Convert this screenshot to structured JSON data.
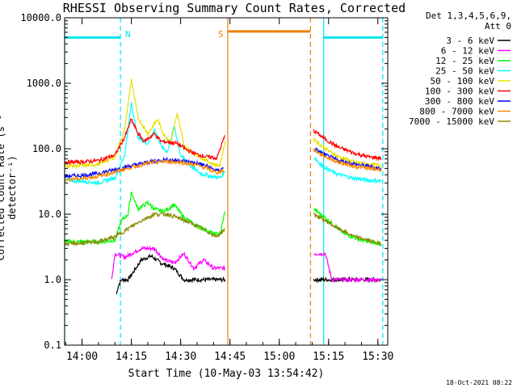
{
  "chart_data": {
    "type": "line",
    "title": "RHESSI Observing Summary Count Rates, Corrected",
    "xlabel": "Start Time (10-May-03 13:54:42)",
    "ylabel": "Corrected Count Rate (s⁻¹ detector⁻¹)",
    "timestamp": "18-Oct-2021 08:22",
    "legend_header": [
      "Det 1,3,4,5,6,9,",
      "Att 0"
    ],
    "y_scale": "log",
    "ylim": [
      0.1,
      10000
    ],
    "xlim_minutes": [
      "13:54:42",
      "15:33:00"
    ],
    "y_ticks": [
      "0.1",
      "1.0",
      "10.0",
      "100.0",
      "1000.0",
      "10000.0"
    ],
    "x_ticks": [
      "14:00",
      "14:15",
      "14:30",
      "14:45",
      "15:00",
      "15:15",
      "15:30"
    ],
    "gap": [
      "14:44:30",
      "15:09:40"
    ],
    "markers": [
      {
        "label": "N",
        "color": "#00e5ee",
        "style": "dashed",
        "times": [
          "14:11:40",
          "15:31:30"
        ]
      },
      {
        "label": "",
        "color": "#00e5ee",
        "style": "solid",
        "times": [
          "13:54:42",
          "15:13:30"
        ]
      },
      {
        "label": "S",
        "color": "#ee8000",
        "style": "solid",
        "times": [
          "14:44:20"
        ]
      },
      {
        "label": "",
        "color": "#ee8000",
        "style": "dashed",
        "times": [
          "15:09:30"
        ]
      }
    ],
    "bands": [
      {
        "color": "#00e5ee",
        "y": 5000,
        "ranges": [
          [
            "13:54:42",
            "14:11:40"
          ],
          [
            "15:13:30",
            "15:31:30"
          ]
        ]
      },
      {
        "color": "#ee8000",
        "y": 6200,
        "ranges": [
          [
            "14:44:20",
            "15:09:30"
          ]
        ]
      }
    ],
    "series": [
      {
        "name": "3 - 6 keV",
        "color": "#000000",
        "points": [
          [
            "14:10:30",
            0.6
          ],
          [
            "14:11:00",
            0.8
          ],
          [
            "14:12:00",
            1.0
          ],
          [
            "14:14:00",
            1.0
          ],
          [
            "14:16:00",
            1.4
          ],
          [
            "14:18:00",
            2.0
          ],
          [
            "14:21:00",
            2.3
          ],
          [
            "14:24:00",
            1.8
          ],
          [
            "14:28:00",
            1.5
          ],
          [
            "14:31:00",
            1.0
          ],
          [
            "14:35:00",
            1.0
          ],
          [
            "14:39:00",
            1.0
          ],
          [
            "14:43:30",
            1.0
          ],
          [
            "15:10:30",
            1.0
          ],
          [
            "15:13:30",
            1.0
          ],
          [
            "15:16:00",
            1.0
          ],
          [
            "15:31:00",
            1.0
          ]
        ]
      },
      {
        "name": "6 - 12 keV",
        "color": "#ff00ff",
        "points": [
          [
            "14:09:00",
            1.0
          ],
          [
            "14:10:00",
            2.5
          ],
          [
            "14:13:00",
            2.2
          ],
          [
            "14:15:00",
            2.5
          ],
          [
            "14:18:00",
            3.0
          ],
          [
            "14:22:00",
            3.0
          ],
          [
            "14:25:00",
            2.0
          ],
          [
            "14:28:00",
            1.8
          ],
          [
            "14:31:00",
            2.5
          ],
          [
            "14:34:00",
            1.5
          ],
          [
            "14:37:00",
            2.0
          ],
          [
            "14:40:00",
            1.5
          ],
          [
            "14:43:30",
            1.5
          ],
          [
            "15:10:30",
            2.5
          ],
          [
            "15:14:00",
            2.5
          ],
          [
            "15:16:00",
            1.0
          ],
          [
            "15:31:00",
            1.0
          ]
        ]
      },
      {
        "name": "12 - 25 keV",
        "color": "#00ff00",
        "points": [
          [
            "13:54:42",
            3.8
          ],
          [
            "14:00:00",
            3.8
          ],
          [
            "14:06:00",
            3.8
          ],
          [
            "14:10:00",
            4.0
          ],
          [
            "14:12:00",
            8.0
          ],
          [
            "14:14:00",
            10.0
          ],
          [
            "14:15:00",
            22.0
          ],
          [
            "14:17:00",
            12.0
          ],
          [
            "14:20:00",
            15.0
          ],
          [
            "14:22:00",
            12.0
          ],
          [
            "14:25:00",
            11.0
          ],
          [
            "14:28:00",
            14.0
          ],
          [
            "14:31:00",
            9.0
          ],
          [
            "14:34:00",
            7.0
          ],
          [
            "14:37:00",
            6.0
          ],
          [
            "14:40:00",
            5.0
          ],
          [
            "14:42:00",
            5.0
          ],
          [
            "14:43:30",
            11.0
          ],
          [
            "15:10:30",
            12.0
          ],
          [
            "15:15:00",
            8.0
          ],
          [
            "15:20:00",
            5.0
          ],
          [
            "15:25:00",
            4.0
          ],
          [
            "15:31:00",
            3.5
          ]
        ]
      },
      {
        "name": "25 - 50 keV",
        "color": "#00ffff",
        "points": [
          [
            "13:54:42",
            33.0
          ],
          [
            "14:00:00",
            32.0
          ],
          [
            "14:05:00",
            30.0
          ],
          [
            "14:10:00",
            36.0
          ],
          [
            "14:13:00",
            80.0
          ],
          [
            "14:15:00",
            490.0
          ],
          [
            "14:17:00",
            150.0
          ],
          [
            "14:20:00",
            120.0
          ],
          [
            "14:22:00",
            200.0
          ],
          [
            "14:24:00",
            110.0
          ],
          [
            "14:26:00",
            90.0
          ],
          [
            "14:28:00",
            220.0
          ],
          [
            "14:30:00",
            80.0
          ],
          [
            "14:33:00",
            55.0
          ],
          [
            "14:36:00",
            42.0
          ],
          [
            "14:39:00",
            38.0
          ],
          [
            "14:42:00",
            36.0
          ],
          [
            "14:43:30",
            45.0
          ],
          [
            "15:10:30",
            75.0
          ],
          [
            "15:13:00",
            55.0
          ],
          [
            "15:17:00",
            42.0
          ],
          [
            "15:22:00",
            36.0
          ],
          [
            "15:27:00",
            33.0
          ],
          [
            "15:31:00",
            32.0
          ]
        ]
      },
      {
        "name": "50 - 100 keV",
        "color": "#e8e000",
        "points": [
          [
            "13:54:42",
            55.0
          ],
          [
            "14:00:00",
            55.0
          ],
          [
            "14:05:00",
            58.0
          ],
          [
            "14:10:00",
            75.0
          ],
          [
            "14:13:00",
            200.0
          ],
          [
            "14:15:00",
            1150.0
          ],
          [
            "14:17:00",
            300.0
          ],
          [
            "14:20:00",
            170.0
          ],
          [
            "14:23:00",
            280.0
          ],
          [
            "14:25:00",
            160.0
          ],
          [
            "14:27:00",
            130.0
          ],
          [
            "14:29:00",
            350.0
          ],
          [
            "14:31:00",
            110.0
          ],
          [
            "14:34:00",
            85.0
          ],
          [
            "14:37:00",
            70.0
          ],
          [
            "14:40:00",
            58.0
          ],
          [
            "14:42:00",
            55.0
          ],
          [
            "14:43:30",
            130.0
          ],
          [
            "15:10:30",
            140.0
          ],
          [
            "15:14:00",
            100.0
          ],
          [
            "15:18:00",
            75.0
          ],
          [
            "15:23:00",
            62.0
          ],
          [
            "15:27:00",
            58.0
          ],
          [
            "15:31:00",
            55.0
          ]
        ]
      },
      {
        "name": "100 - 300 keV",
        "color": "#ff0000",
        "points": [
          [
            "13:54:42",
            62.0
          ],
          [
            "14:00:00",
            63.0
          ],
          [
            "14:05:00",
            66.0
          ],
          [
            "14:10:00",
            80.0
          ],
          [
            "14:13:00",
            150.0
          ],
          [
            "14:15:00",
            280.0
          ],
          [
            "14:17:00",
            170.0
          ],
          [
            "14:19:00",
            130.0
          ],
          [
            "14:22:00",
            170.0
          ],
          [
            "14:24:00",
            130.0
          ],
          [
            "14:27:00",
            125.0
          ],
          [
            "14:29:00",
            120.0
          ],
          [
            "14:32:00",
            95.0
          ],
          [
            "14:35:00",
            82.0
          ],
          [
            "14:38:00",
            75.0
          ],
          [
            "14:41:00",
            72.0
          ],
          [
            "14:43:30",
            160.0
          ],
          [
            "15:10:30",
            190.0
          ],
          [
            "15:14:00",
            140.0
          ],
          [
            "15:18:00",
            105.0
          ],
          [
            "15:23:00",
            85.0
          ],
          [
            "15:27:00",
            75.0
          ],
          [
            "15:31:00",
            72.0
          ]
        ]
      },
      {
        "name": "300 - 800 keV",
        "color": "#0000ff",
        "points": [
          [
            "13:54:42",
            38.0
          ],
          [
            "14:00:00",
            39.0
          ],
          [
            "14:05:00",
            42.0
          ],
          [
            "14:10:00",
            48.0
          ],
          [
            "14:15:00",
            55.0
          ],
          [
            "14:20:00",
            62.0
          ],
          [
            "14:25:00",
            68.0
          ],
          [
            "14:30:00",
            66.0
          ],
          [
            "14:35:00",
            60.0
          ],
          [
            "14:38:00",
            54.0
          ],
          [
            "14:41:00",
            46.0
          ],
          [
            "14:43:00",
            50.0
          ],
          [
            "15:10:30",
            100.0
          ],
          [
            "15:14:00",
            80.0
          ],
          [
            "15:18:00",
            66.0
          ],
          [
            "15:23:00",
            58.0
          ],
          [
            "15:27:00",
            54.0
          ],
          [
            "15:31:00",
            50.0
          ]
        ]
      },
      {
        "name": "800 - 7000 keV",
        "color": "#ff8800",
        "points": [
          [
            "13:54:42",
            34.0
          ],
          [
            "14:00:00",
            35.0
          ],
          [
            "14:05:00",
            38.0
          ],
          [
            "14:10:00",
            44.0
          ],
          [
            "14:15:00",
            52.0
          ],
          [
            "14:20:00",
            60.0
          ],
          [
            "14:25:00",
            64.0
          ],
          [
            "14:30:00",
            62.0
          ],
          [
            "14:35:00",
            56.0
          ],
          [
            "14:38:00",
            50.0
          ],
          [
            "14:41:00",
            43.0
          ],
          [
            "14:43:00",
            47.0
          ],
          [
            "15:10:30",
            95.0
          ],
          [
            "15:14:00",
            76.0
          ],
          [
            "15:18:00",
            62.0
          ],
          [
            "15:23:00",
            54.0
          ],
          [
            "15:27:00",
            50.0
          ],
          [
            "15:31:00",
            48.0
          ]
        ]
      },
      {
        "name": "7000 - 15000 keV",
        "color": "#8a8a00",
        "points": [
          [
            "13:54:42",
            3.5
          ],
          [
            "14:00:00",
            3.6
          ],
          [
            "14:05:00",
            3.8
          ],
          [
            "14:10:00",
            4.5
          ],
          [
            "14:14:00",
            6.0
          ],
          [
            "14:18:00",
            8.0
          ],
          [
            "14:22:00",
            10.0
          ],
          [
            "14:26:00",
            10.0
          ],
          [
            "14:30:00",
            8.5
          ],
          [
            "14:34:00",
            7.0
          ],
          [
            "14:38:00",
            5.5
          ],
          [
            "14:41:00",
            4.5
          ],
          [
            "14:43:30",
            6.0
          ],
          [
            "15:10:30",
            10.0
          ],
          [
            "15:14:00",
            8.0
          ],
          [
            "15:18:00",
            6.0
          ],
          [
            "15:23:00",
            4.5
          ],
          [
            "15:27:00",
            4.0
          ],
          [
            "15:31:00",
            3.5
          ]
        ]
      }
    ]
  }
}
